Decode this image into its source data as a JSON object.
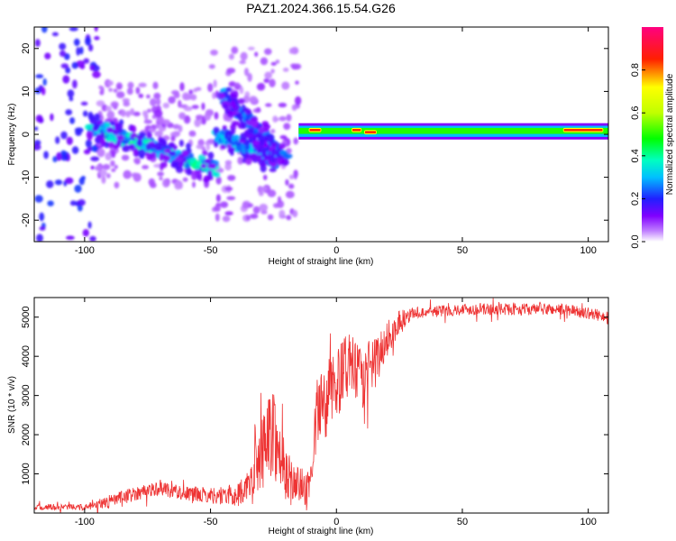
{
  "title": "PAZ1.2024.366.15.54.G26",
  "chart_data": [
    {
      "type": "heatmap",
      "xlabel": "Height of straight line (km)",
      "ylabel": "Frequency (Hz)",
      "xlim": [
        -120,
        108
      ],
      "ylim": [
        -25,
        25
      ],
      "xticks": [
        -100,
        -50,
        0,
        50,
        100
      ],
      "yticks": [
        -20,
        -10,
        0,
        10,
        20
      ],
      "colorbar": {
        "label": "Normalized spectral amplitude",
        "range": [
          0,
          1
        ],
        "ticks": [
          0.0,
          0.2,
          0.4,
          0.6,
          0.8
        ],
        "colormap": "rainbow (purple-blue-cyan-green-yellow-red-magenta)"
      },
      "features": {
        "carrier_line": {
          "x_start": -15,
          "x_end": 108,
          "frequency": 1,
          "amplitude": 0.5
        },
        "peak_segments": [
          {
            "x_start": -11,
            "x_end": -6,
            "frequency": 1,
            "amplitude": 0.85
          },
          {
            "x_start": 6,
            "x_end": 10,
            "frequency": 1,
            "amplitude": 0.85
          },
          {
            "x_start": 11,
            "x_end": 16,
            "frequency": 0.5,
            "amplitude": 0.85
          },
          {
            "x_start": 90,
            "x_end": 106,
            "frequency": 1,
            "amplitude": 0.85
          }
        ],
        "diagonal_tracks": [
          {
            "x_start": -98,
            "x_end": -48,
            "f_start": 2,
            "f_end": -8,
            "amplitude": 0.35
          },
          {
            "x_start": -48,
            "x_end": -24,
            "f_start": 0,
            "f_end": -6,
            "amplitude": 0.3
          },
          {
            "x_start": -46,
            "x_end": -25,
            "f_start": 10,
            "f_end": -4,
            "amplitude": 0.25
          },
          {
            "x_start": -38,
            "x_end": -20,
            "f_start": 5,
            "f_end": -6,
            "amplitude": 0.25
          }
        ],
        "noise_region_x": [
          -120,
          -15
        ]
      }
    },
    {
      "type": "line",
      "xlabel": "Height of straight line (km)",
      "ylabel": "SNR (10 * v/v)",
      "xlim": [
        -120,
        108
      ],
      "ylim": [
        0,
        5500
      ],
      "xticks": [
        -100,
        -50,
        0,
        50,
        100
      ],
      "yticks": [
        1000,
        2000,
        3000,
        4000,
        5000
      ],
      "series_color": "#ee3333",
      "envelope": {
        "x": [
          -120,
          -100,
          -95,
          -80,
          -70,
          -60,
          -50,
          -40,
          -35,
          -30,
          -28,
          -25,
          -22,
          -20,
          -15,
          -10,
          -8,
          -5,
          0,
          5,
          10,
          15,
          20,
          25,
          30,
          40,
          50,
          60,
          70,
          80,
          90,
          100,
          108
        ],
        "y": [
          150,
          150,
          200,
          500,
          650,
          500,
          450,
          450,
          700,
          1400,
          1800,
          2200,
          1200,
          900,
          700,
          600,
          2400,
          2800,
          3300,
          3800,
          3400,
          3800,
          4400,
          4900,
          5100,
          5150,
          5200,
          5200,
          5200,
          5200,
          5200,
          5100,
          5000
        ]
      },
      "noise_amplitude": {
        "x": [
          -120,
          -100,
          -90,
          -50,
          -35,
          -30,
          -25,
          -20,
          -15,
          -10,
          -8,
          0,
          10,
          20,
          30,
          108
        ],
        "y": [
          80,
          80,
          180,
          200,
          350,
          900,
          1200,
          700,
          500,
          400,
          1000,
          900,
          800,
          500,
          150,
          150
        ]
      }
    }
  ]
}
